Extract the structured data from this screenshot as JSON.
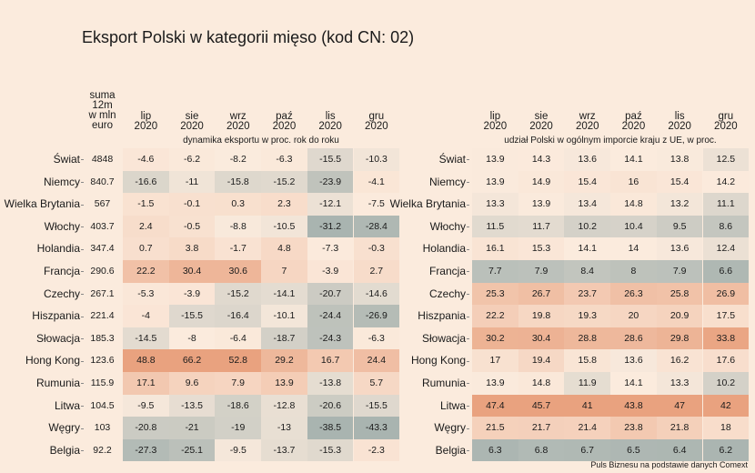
{
  "title": "Eksport Polski w kategorii mięso (kod CN: 02)",
  "source": "Puls Biznesu na podstawie danych Comext",
  "sum_header": "suma\n12m\nw mln\neuro",
  "months": [
    "lip\n2020",
    "sie\n2020",
    "wrz\n2020",
    "paź\n2020",
    "lis\n2020",
    "gru\n2020"
  ],
  "left_subtitle": "dynamika eksportu w proc. rok do roku",
  "right_subtitle": "udział Polski w ogólnym imporcie kraju z UE, w proc.",
  "countries": [
    "Świat",
    "Niemcy",
    "Wielka Brytania",
    "Włochy",
    "Holandia",
    "Francja",
    "Czechy",
    "Hiszpania",
    "Słowacja",
    "Hong Kong",
    "Rumunia",
    "Litwa",
    "Węgry",
    "Belgia"
  ],
  "colors": {
    "background": "#fbebdd",
    "high": "#e9a27f",
    "low": "#a9b4b0"
  },
  "chart_data": [
    {
      "type": "heatmap",
      "name": "dynamika",
      "sum": [
        "4848",
        "840.7",
        "567",
        "403.7",
        "347.4",
        "290.6",
        "267.1",
        "221.4",
        "185.3",
        "123.6",
        "115.9",
        "104.5",
        "103",
        "92.2"
      ],
      "values": [
        [
          -4.6,
          -6.2,
          -8.2,
          -6.3,
          -15.5,
          -10.3
        ],
        [
          -16.6,
          -11,
          -15.8,
          -15.2,
          -23.9,
          -4.1
        ],
        [
          -1.5,
          -0.1,
          0.3,
          2.3,
          -12.1,
          -7.5
        ],
        [
          2.4,
          -0.5,
          -8.8,
          -10.5,
          -31.2,
          -28.4
        ],
        [
          0.7,
          3.8,
          -1.7,
          4.8,
          -7.3,
          -0.3
        ],
        [
          22.2,
          30.4,
          30.6,
          7,
          -3.9,
          2.7
        ],
        [
          -5.3,
          -3.9,
          -15.2,
          -14.1,
          -20.7,
          -14.6
        ],
        [
          -4,
          -15.5,
          -16.4,
          -10.1,
          -24.4,
          -26.9
        ],
        [
          -14.5,
          -8,
          -6.4,
          -18.7,
          -24.3,
          -6.3
        ],
        [
          48.8,
          66.2,
          52.8,
          29.2,
          16.7,
          24.4
        ],
        [
          17.1,
          9.6,
          7.9,
          13.9,
          -13.8,
          5.7
        ],
        [
          -9.5,
          -13.5,
          -18.6,
          -12.8,
          -20.6,
          -15.5
        ],
        [
          -20.8,
          -21,
          -19,
          -13,
          -38.5,
          -43.3
        ],
        [
          -27.3,
          -25.1,
          -9.5,
          -13.7,
          -15.3,
          -2.3
        ]
      ]
    },
    {
      "type": "heatmap",
      "name": "udzial",
      "values": [
        [
          13.9,
          14.3,
          13.6,
          14.1,
          13.8,
          12.5
        ],
        [
          13.9,
          14.9,
          15.4,
          16,
          15.4,
          14.2
        ],
        [
          13.3,
          13.9,
          13.4,
          14.8,
          13.2,
          11.1
        ],
        [
          11.5,
          11.7,
          10.2,
          10.4,
          9.5,
          8.6
        ],
        [
          16.1,
          15.3,
          14.1,
          14,
          13.6,
          12.4
        ],
        [
          7.7,
          7.9,
          8.4,
          8,
          7.9,
          6.6
        ],
        [
          25.3,
          26.7,
          23.7,
          26.3,
          25.8,
          26.9
        ],
        [
          22.2,
          19.8,
          19.3,
          20,
          20.9,
          17.5
        ],
        [
          30.2,
          30.4,
          28.8,
          28.6,
          29.8,
          33.8
        ],
        [
          17,
          19.4,
          15.8,
          13.6,
          16.2,
          17.6
        ],
        [
          13.9,
          14.8,
          11.9,
          14.1,
          13.3,
          10.2
        ],
        [
          47.4,
          45.7,
          41,
          43.8,
          47,
          42
        ],
        [
          21.5,
          21.7,
          21.4,
          23.8,
          21.8,
          18
        ],
        [
          6.3,
          6.8,
          6.7,
          6.5,
          6.4,
          6.2
        ]
      ]
    }
  ]
}
